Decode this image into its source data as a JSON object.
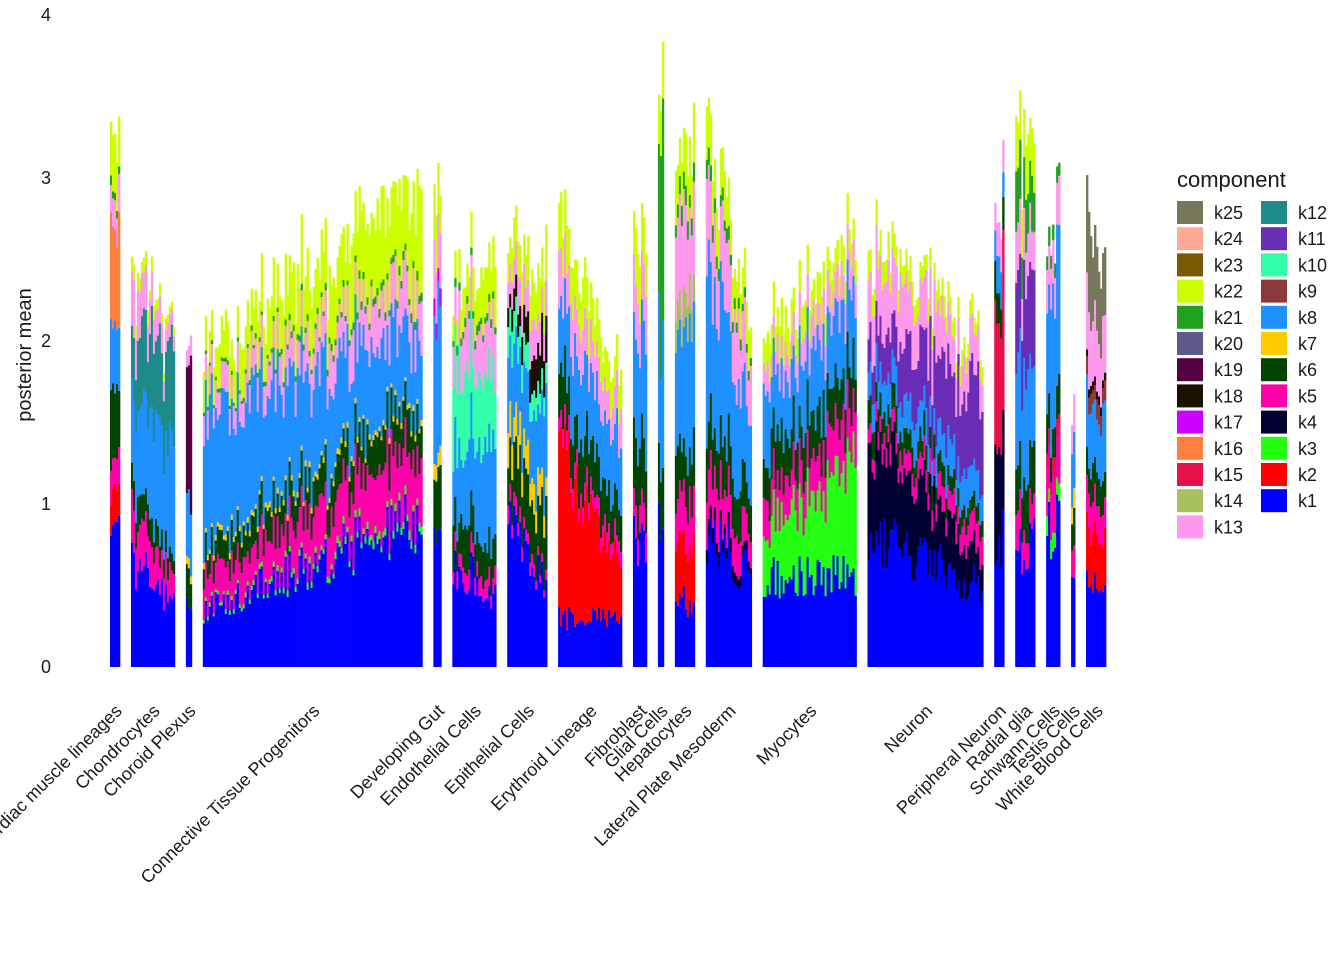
{
  "chart_data": {
    "type": "stacked-bar",
    "title": "",
    "xlabel": "",
    "ylabel": "posterior mean",
    "ylim": [
      0,
      4
    ],
    "yticks": [
      0,
      1,
      2,
      3,
      4
    ],
    "grid": false,
    "legend_title": "component",
    "legend_position": "right",
    "legend_order": [
      "k25",
      "k24",
      "k23",
      "k22",
      "k21",
      "k20",
      "k19",
      "k18",
      "k17",
      "k16",
      "k15",
      "k14",
      "k13",
      "k12",
      "k11",
      "k10",
      "k9",
      "k8",
      "k7",
      "k6",
      "k5",
      "k4",
      "k3",
      "k2",
      "k1"
    ],
    "component_colors": {
      "k1": "#0000FF",
      "k2": "#FF0000",
      "k3": "#22FF11",
      "k4": "#000033",
      "k5": "#FF00AA",
      "k6": "#004400",
      "k7": "#FFCC00",
      "k8": "#1E90FF",
      "k9": "#8B3A3A",
      "k10": "#33FFAA",
      "k11": "#6A2DB5",
      "k12": "#1F8A8A",
      "k13": "#FF99EE",
      "k14": "#A8C060",
      "k15": "#E8104A",
      "k16": "#FF7F3F",
      "k17": "#CC00FF",
      "k18": "#1A1200",
      "k19": "#550044",
      "k20": "#5E5A8A",
      "k21": "#22A022",
      "k22": "#CCFF00",
      "k23": "#7A5A00",
      "k24": "#FFAA99",
      "k25": "#77775A"
    },
    "groups": [
      {
        "label": "Cardiac muscle lineages",
        "n": 5,
        "profile": {
          "k1": [
            0.75,
            0.75
          ],
          "k2": [
            0.2,
            0.2
          ],
          "k5": [
            0.2,
            0.2
          ],
          "k6": [
            0.4,
            0.4
          ],
          "k8": [
            0.4,
            0.4
          ],
          "k16": [
            0.6,
            0.6
          ],
          "k13": [
            0.2,
            0.2
          ],
          "k21": [
            0.05,
            0.05
          ],
          "k22": [
            0.3,
            0.3
          ]
        }
      },
      {
        "label": "Chondrocytes",
        "n": 22,
        "profile": {
          "k1": [
            0.65,
            0.4
          ],
          "k5": [
            0.3,
            0.15
          ],
          "k6": [
            0.2,
            0.1
          ],
          "k8": [
            0.5,
            0.7
          ],
          "k12": [
            0.4,
            0.6
          ],
          "k13": [
            0.3,
            0.1
          ],
          "k22": [
            0.1,
            0.05
          ]
        }
      },
      {
        "label": "Choroid Plexus",
        "n": 3,
        "profile": {
          "k1": [
            0.4,
            0.4
          ],
          "k6": [
            0.2,
            0.2
          ],
          "k7": [
            0.05,
            0.05
          ],
          "k8": [
            0.4,
            0.4
          ],
          "k19": [
            0.8,
            0.8
          ],
          "k13": [
            0.1,
            0.1
          ]
        }
      },
      {
        "label": "Connective Tissue Progenitors",
        "n": 110,
        "profile": {
          "k1": [
            0.35,
            0.92
          ],
          "k3": [
            0.02,
            0.05
          ],
          "k5": [
            0.2,
            0.4
          ],
          "k6": [
            0.15,
            0.25
          ],
          "k7": [
            0.03,
            0.03
          ],
          "k8": [
            0.8,
            0.45
          ],
          "k13": [
            0.15,
            0.3
          ],
          "k21": [
            0.02,
            0.05
          ],
          "k22": [
            0.2,
            0.55
          ]
        }
      },
      {
        "label": "Developing Gut",
        "n": 4,
        "profile": {
          "k1": [
            0.7,
            0.7
          ],
          "k6": [
            0.35,
            0.35
          ],
          "k7": [
            0.1,
            0.1
          ],
          "k8": [
            0.9,
            0.9
          ],
          "k13": [
            0.4,
            0.4
          ],
          "k17": [
            0.1,
            0.1
          ],
          "k22": [
            0.3,
            0.3
          ]
        }
      },
      {
        "label": "Endothelial Cells",
        "n": 22,
        "profile": {
          "k1": [
            0.65,
            0.45
          ],
          "k5": [
            0.1,
            0.1
          ],
          "k6": [
            0.25,
            0.2
          ],
          "k8": [
            0.4,
            0.6
          ],
          "k10": [
            0.5,
            0.4
          ],
          "k13": [
            0.3,
            0.3
          ],
          "k21": [
            0.05,
            0.05
          ],
          "k22": [
            0.2,
            0.3
          ]
        }
      },
      {
        "label": "Epithelial Cells",
        "n": 20,
        "profile": {
          "k1": [
            0.85,
            0.5
          ],
          "k5": [
            0.1,
            0.05
          ],
          "k6": [
            0.3,
            0.4
          ],
          "k7": [
            0.2,
            0.15
          ],
          "k8": [
            0.4,
            0.5
          ],
          "k10": [
            0.2,
            0.1
          ],
          "k18": [
            0.1,
            0.3
          ],
          "k13": [
            0.2,
            0.2
          ],
          "k22": [
            0.2,
            0.3
          ]
        }
      },
      {
        "label": "Erythroid Lineage",
        "n": 32,
        "profile": {
          "k1": [
            0.3,
            0.3
          ],
          "k2": [
            1.0,
            0.3
          ],
          "k5": [
            0.1,
            0.1
          ],
          "k6": [
            0.3,
            0.25
          ],
          "k8": [
            0.45,
            0.4
          ],
          "k13": [
            0.3,
            0.2
          ],
          "k22": [
            0.3,
            0.2
          ]
        }
      },
      {
        "label": "Fibroblast",
        "n": 7,
        "profile": {
          "k1": [
            0.8,
            0.8
          ],
          "k5": [
            0.2,
            0.2
          ],
          "k6": [
            0.4,
            0.4
          ],
          "k8": [
            0.6,
            0.6
          ],
          "k13": [
            0.3,
            0.3
          ],
          "k22": [
            0.3,
            0.3
          ]
        }
      },
      {
        "label": "Glial Cells",
        "n": 3,
        "profile": {
          "k1": [
            0.85,
            0.85
          ],
          "k6": [
            0.3,
            0.3
          ],
          "k8": [
            0.8,
            0.8
          ],
          "k21": [
            1.2,
            1.2
          ],
          "k22": [
            0.3,
            0.3
          ]
        }
      },
      {
        "label": "Hepatocytes",
        "n": 10,
        "profile": {
          "k1": [
            0.4,
            0.4
          ],
          "k2": [
            0.4,
            0.4
          ],
          "k5": [
            0.3,
            0.3
          ],
          "k6": [
            0.3,
            0.3
          ],
          "k8": [
            0.7,
            0.7
          ],
          "k13": [
            0.5,
            0.5
          ],
          "k14": [
            0.2,
            0.2
          ],
          "k21": [
            0.1,
            0.1
          ],
          "k22": [
            0.3,
            0.3
          ]
        }
      },
      {
        "label": "Lateral Plate Mesoderm",
        "n": 23,
        "profile": {
          "k1": [
            0.85,
            0.55
          ],
          "k4": [
            0.1,
            0.05
          ],
          "k5": [
            0.3,
            0.2
          ],
          "k6": [
            0.3,
            0.25
          ],
          "k8": [
            1.0,
            0.5
          ],
          "k13": [
            0.5,
            0.3
          ],
          "k21": [
            0.1,
            0.05
          ],
          "k22": [
            0.3,
            0.2
          ]
        }
      },
      {
        "label": "Myocytes",
        "n": 47,
        "profile": {
          "k1": [
            0.55,
            0.55
          ],
          "k3": [
            0.3,
            0.7
          ],
          "k5": [
            0.2,
            0.3
          ],
          "k6": [
            0.25,
            0.25
          ],
          "k8": [
            0.4,
            0.4
          ],
          "k13": [
            0.15,
            0.2
          ],
          "k22": [
            0.2,
            0.15
          ]
        }
      },
      {
        "label": "Neuron",
        "n": 58,
        "profile": {
          "k1": [
            0.8,
            0.5
          ],
          "k4": [
            0.6,
            0.2
          ],
          "k5": [
            0.1,
            0.15
          ],
          "k6": [
            0.15,
            0.1
          ],
          "k8": [
            0.2,
            0.2
          ],
          "k11": [
            0.2,
            0.6
          ],
          "k13": [
            0.4,
            0.2
          ],
          "k22": [
            0.15,
            0.1
          ]
        }
      },
      {
        "label": "Peripheral Neuron",
        "n": 5,
        "profile": {
          "k1": [
            0.8,
            0.8
          ],
          "k4": [
            0.6,
            0.6
          ],
          "k6": [
            0.2,
            0.2
          ],
          "k8": [
            0.2,
            0.2
          ],
          "k15": [
            0.9,
            0.9
          ],
          "k13": [
            0.2,
            0.2
          ]
        }
      },
      {
        "label": "Radial glia",
        "n": 10,
        "profile": {
          "k1": [
            0.75,
            0.75
          ],
          "k5": [
            0.2,
            0.2
          ],
          "k6": [
            0.3,
            0.3
          ],
          "k8": [
            0.6,
            0.6
          ],
          "k11": [
            0.5,
            0.5
          ],
          "k13": [
            0.3,
            0.3
          ],
          "k21": [
            0.3,
            0.3
          ],
          "k22": [
            0.3,
            0.3
          ]
        }
      },
      {
        "label": "Schwann Cells",
        "n": 7,
        "profile": {
          "k1": [
            0.85,
            0.85
          ],
          "k3": [
            0.1,
            0.1
          ],
          "k5": [
            0.3,
            0.3
          ],
          "k6": [
            0.2,
            0.2
          ],
          "k8": [
            0.8,
            0.8
          ],
          "k15": [
            0.1,
            0.1
          ],
          "k13": [
            0.3,
            0.3
          ],
          "k21": [
            0.1,
            0.1
          ]
        }
      },
      {
        "label": "Testis Cells",
        "n": 2,
        "profile": {
          "k1": [
            0.6,
            0.6
          ],
          "k5": [
            0.2,
            0.2
          ],
          "k6": [
            0.2,
            0.2
          ],
          "k7": [
            0.1,
            0.1
          ],
          "k8": [
            0.4,
            0.4
          ],
          "k13": [
            0.2,
            0.2
          ]
        }
      },
      {
        "label": "White Blood Cells",
        "n": 10,
        "profile": {
          "k1": [
            0.55,
            0.55
          ],
          "k2": [
            0.3,
            0.3
          ],
          "k5": [
            0.2,
            0.2
          ],
          "k6": [
            0.2,
            0.2
          ],
          "k8": [
            0.4,
            0.4
          ],
          "k13": [
            0.4,
            0.4
          ],
          "k9": [
            0.1,
            0.1
          ],
          "k18": [
            0.05,
            0.05
          ],
          "k25": [
            0.5,
            0.5
          ]
        }
      }
    ]
  }
}
